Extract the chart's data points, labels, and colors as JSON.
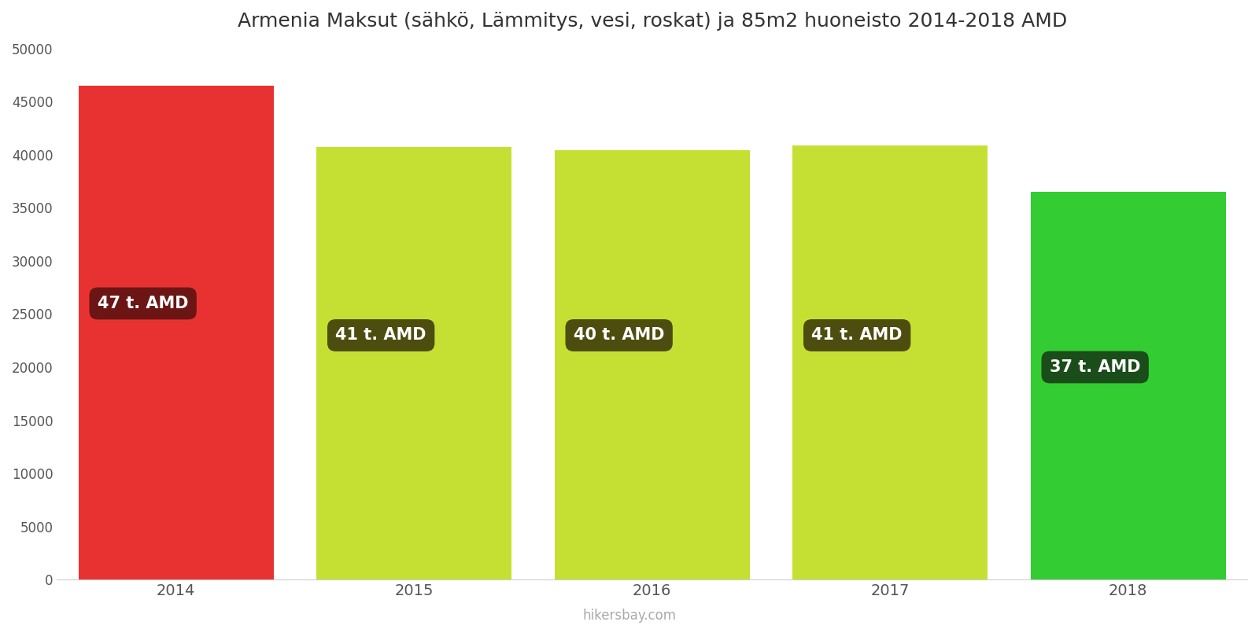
{
  "title": "Armenia Maksut (sähkö, Lämmitys, vesi, roskat) ja 85m2 huoneisto 2014-2018 AMD",
  "years": [
    "2014",
    "2015",
    "2016",
    "2017",
    "2018"
  ],
  "values": [
    46500,
    40700,
    40400,
    40900,
    36500
  ],
  "bar_colors": [
    "#e83232",
    "#c5e033",
    "#c5e033",
    "#c5e033",
    "#33cc33"
  ],
  "label_texts": [
    "47 t. AMD",
    "41 t. AMD",
    "40 t. AMD",
    "41 t. AMD",
    "37 t. AMD"
  ],
  "label_bg_colors": [
    "#6b1515",
    "#4d4d10",
    "#4d4d10",
    "#4d4d10",
    "#1a4d1a"
  ],
  "label_y_positions": [
    26000,
    23000,
    23000,
    23000,
    20000
  ],
  "ylim": [
    0,
    50000
  ],
  "yticks": [
    0,
    5000,
    10000,
    15000,
    20000,
    25000,
    30000,
    35000,
    40000,
    45000,
    50000
  ],
  "watermark": "hikersbay.com",
  "title_fontsize": 18,
  "background_color": "#ffffff",
  "bar_width": 0.82
}
